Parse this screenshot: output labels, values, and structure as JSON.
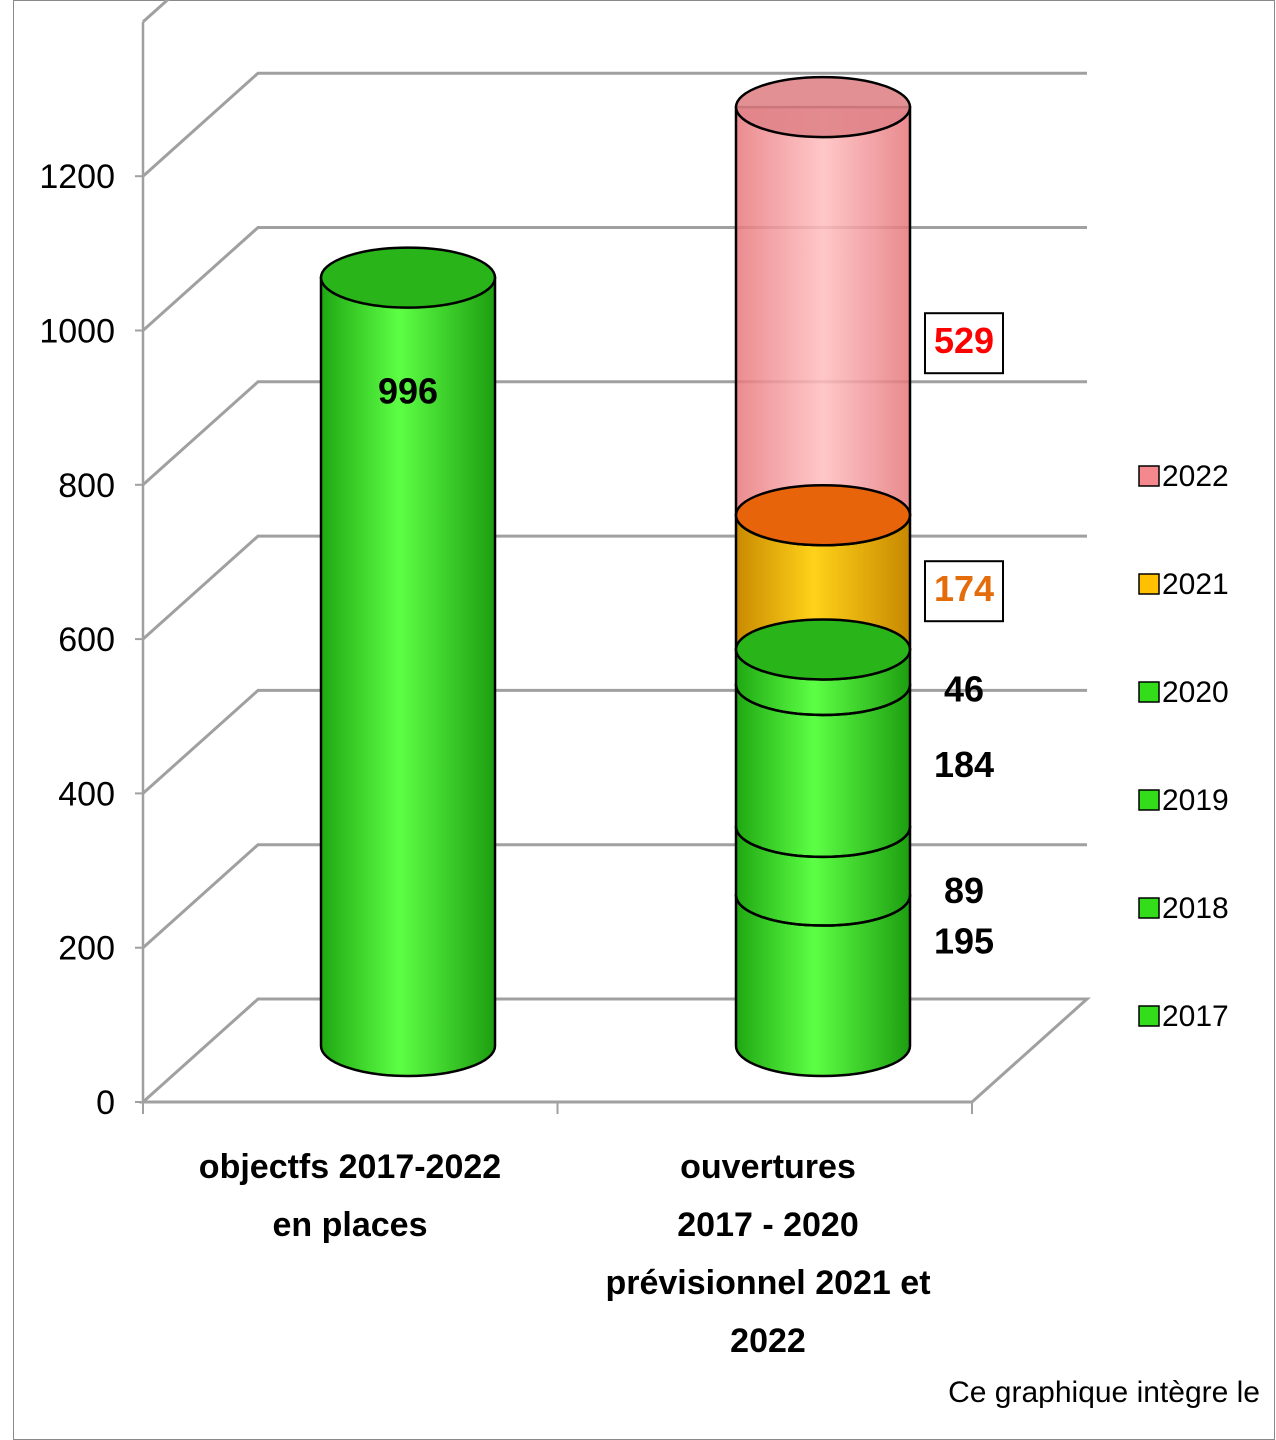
{
  "chart_data": {
    "type": "bar",
    "stacked": true,
    "three_d": true,
    "categories": [
      [
        "objectfs 2017-2022",
        "en places"
      ],
      [
        "ouvertures",
        "2017 - 2020",
        "prévisionnel 2021 et",
        "2022"
      ]
    ],
    "series": [
      {
        "name": "2017",
        "values": [
          996,
          195
        ],
        "color": "#33dd1a",
        "labels": [
          "996",
          "195"
        ],
        "label_color": "#000000",
        "boxed": false
      },
      {
        "name": "2018",
        "values": [
          0,
          89
        ],
        "color": "#33dd1a",
        "labels": [
          "",
          "89"
        ],
        "label_color": "#000000",
        "boxed": false
      },
      {
        "name": "2019",
        "values": [
          0,
          184
        ],
        "color": "#33dd1a",
        "labels": [
          "",
          "184"
        ],
        "label_color": "#000000",
        "boxed": false
      },
      {
        "name": "2020",
        "values": [
          0,
          46
        ],
        "color": "#33dd1a",
        "labels": [
          "",
          "46"
        ],
        "label_color": "#000000",
        "boxed": false
      },
      {
        "name": "2021",
        "values": [
          0,
          174
        ],
        "color": "#ffc000",
        "labels": [
          "",
          "174"
        ],
        "label_color": "#e46c0a",
        "boxed": true
      },
      {
        "name": "2022",
        "values": [
          0,
          529
        ],
        "color": "#f4888c",
        "labels": [
          "",
          "529"
        ],
        "label_color": "#ff0000",
        "boxed": true
      }
    ],
    "yticks": [
      0,
      200,
      400,
      600,
      800,
      1000,
      1200
    ],
    "ylim": [
      0,
      1400
    ],
    "grid": true,
    "legend": "right",
    "note": "Ce graphique intègre le"
  }
}
